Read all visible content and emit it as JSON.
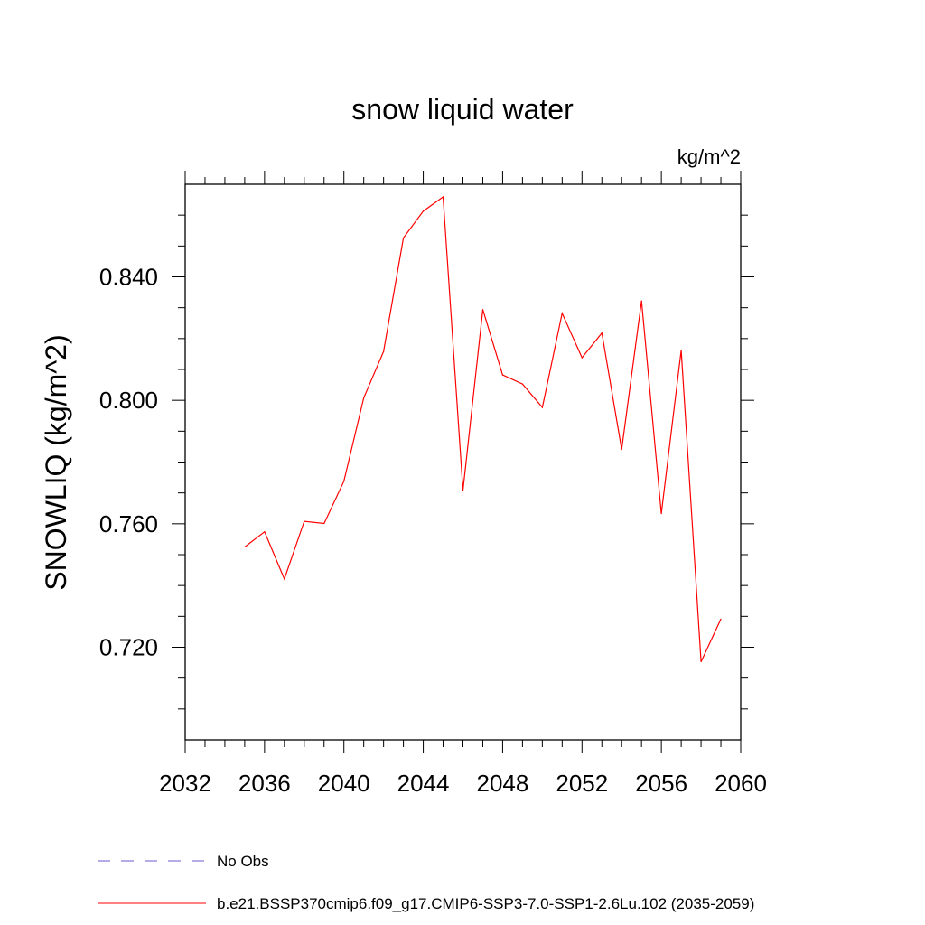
{
  "chart_data": {
    "type": "line",
    "title": "snow liquid water",
    "units_label": "kg/m^2",
    "ylabel": "SNOWLIQ  (kg/m^2)",
    "xlabel": "",
    "xlim": [
      2032,
      2060
    ],
    "ylim": [
      0.69,
      0.87
    ],
    "x_ticks": [
      2032,
      2036,
      2040,
      2044,
      2048,
      2052,
      2056,
      2060
    ],
    "x_tick_labels": [
      "2032",
      "2036",
      "2040",
      "2044",
      "2048",
      "2052",
      "2056",
      "2060"
    ],
    "y_ticks": [
      0.72,
      0.76,
      0.8,
      0.84
    ],
    "y_tick_labels": [
      "0.720",
      "0.760",
      "0.800",
      "0.840"
    ],
    "grid": false,
    "legend_position": "bottom",
    "legend": [
      {
        "label": "No Obs",
        "color": "#6a5acd",
        "style": "dashed"
      },
      {
        "label": "b.e21.BSSP370cmip6.f09_g17.CMIP6-SSP3-7.0-SSP1-2.6Lu.102 (2035-2059)",
        "color": "#ff0000",
        "style": "solid"
      }
    ],
    "series": [
      {
        "color": "#ff0000",
        "x": [
          2035,
          2036,
          2037,
          2038,
          2039,
          2040,
          2041,
          2042,
          2043,
          2044,
          2045,
          2046,
          2047,
          2048,
          2049,
          2050,
          2051,
          2052,
          2053,
          2054,
          2055,
          2056,
          2057,
          2058,
          2059
        ],
        "values": [
          0.7525,
          0.7574,
          0.7421,
          0.7608,
          0.7601,
          0.7738,
          0.8008,
          0.8158,
          0.8526,
          0.8613,
          0.8659,
          0.7708,
          0.8294,
          0.8082,
          0.8053,
          0.7977,
          0.8282,
          0.8138,
          0.8218,
          0.7841,
          0.8322,
          0.7633,
          0.8162,
          0.7153,
          0.7291
        ]
      }
    ]
  }
}
